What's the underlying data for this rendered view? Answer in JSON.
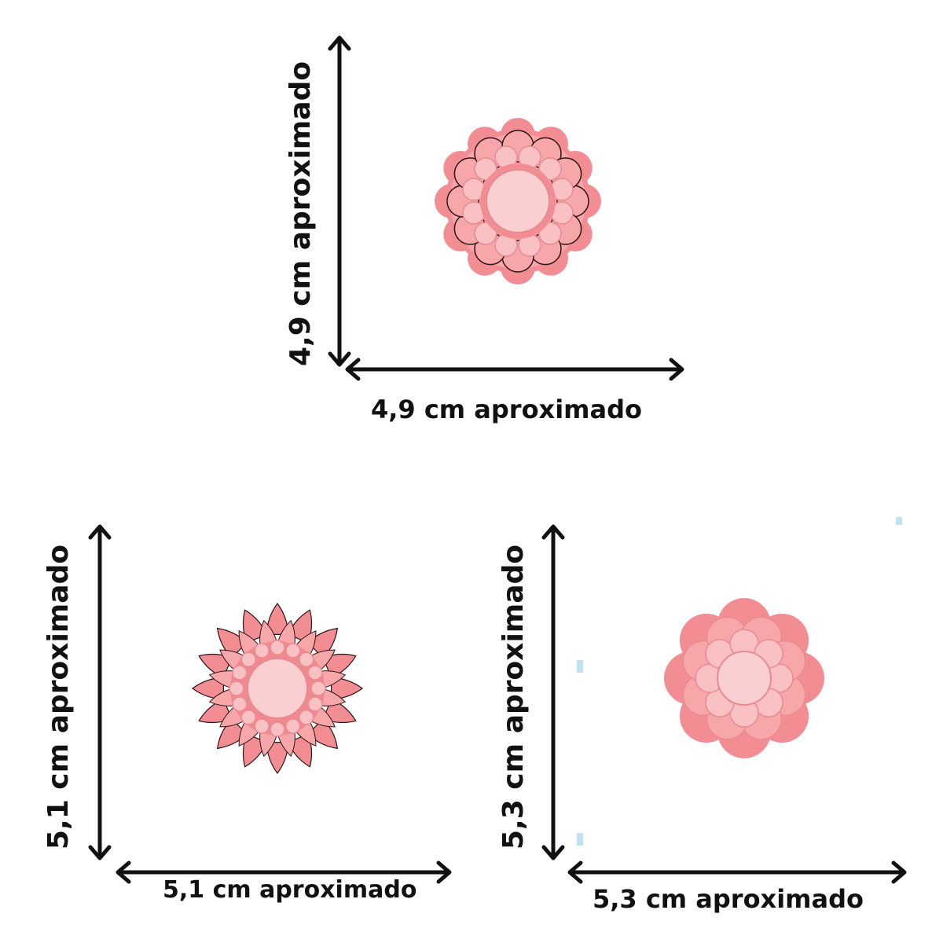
{
  "colors": {
    "cutter_outer": "#f7a6a9",
    "cutter_rim": "#f28e93",
    "cutter_inner": "#f9c1c3",
    "cutter_center": "#f9cfd2",
    "petal_line": "#2a1416",
    "arrow": "#111111",
    "corner_mark": "#bfe3f0"
  },
  "items": [
    {
      "shape": "round-scalloped-flower",
      "width_label": "4,9 cm aproximado",
      "height_label": "4,9  cm aproximado"
    },
    {
      "shape": "pointed-petal-flower",
      "width_label": "5,1 cm aproximado",
      "height_label": "5,1  cm aproximado"
    },
    {
      "shape": "layered-scalloped-flower",
      "width_label": "5,3 cm aproximado",
      "height_label": "5,3 cm aproximado"
    }
  ]
}
